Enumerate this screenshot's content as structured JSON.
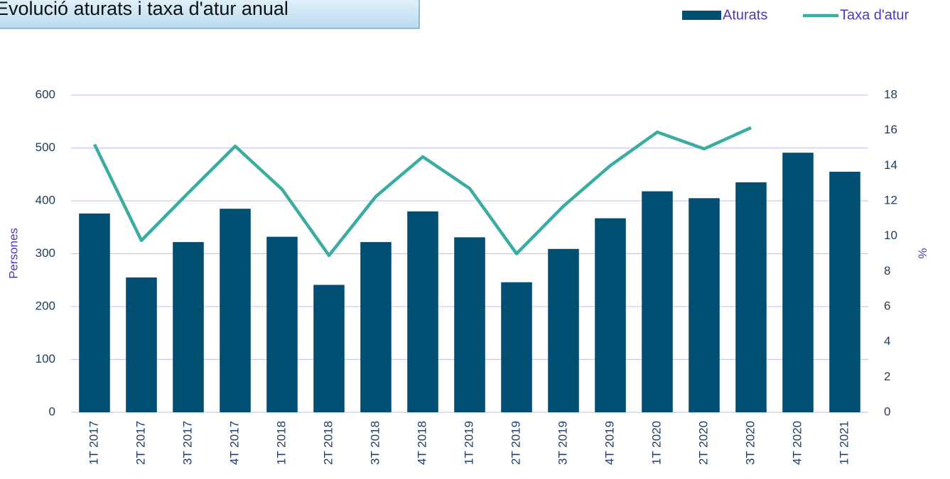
{
  "chart_data": {
    "type": "bar",
    "title": "Evolució aturats i taxa d'atur anual",
    "categories": [
      "1T 2017",
      "2T 2017",
      "3T 2017",
      "4T 2017",
      "1T 2018",
      "2T 2018",
      "3T 2018",
      "4T 2018",
      "1T 2019",
      "2T 2019",
      "3T 2019",
      "4T 2019",
      "1T 2020",
      "2T 2020",
      "3T 2020",
      "4T 2020",
      "1T 2021"
    ],
    "series": [
      {
        "name": "Aturats",
        "type": "bar",
        "color": "#004e71",
        "values": [
          376,
          255,
          322,
          385,
          332,
          241,
          322,
          380,
          331,
          246,
          309,
          367,
          418,
          405,
          435,
          491,
          455
        ]
      },
      {
        "name": "Taxa d'atur",
        "type": "line",
        "axis": "y2",
        "color": "#3aada0",
        "values": [
          15.2,
          9.75,
          12.45,
          15.1,
          12.65,
          8.9,
          12.25,
          14.5,
          12.7,
          9.0,
          11.7,
          14.0,
          15.9,
          14.95,
          16.15,
          null,
          null
        ]
      }
    ],
    "ylabel": "Persones",
    "y2label": "%",
    "ylim": [
      0,
      600
    ],
    "yticks": [
      0,
      100,
      200,
      300,
      400,
      500,
      600
    ],
    "y2lim": [
      0,
      18
    ],
    "y2ticks": [
      0,
      2,
      4,
      6,
      8,
      10,
      12,
      14,
      16,
      18
    ],
    "grid": true,
    "legend": "top-right"
  }
}
